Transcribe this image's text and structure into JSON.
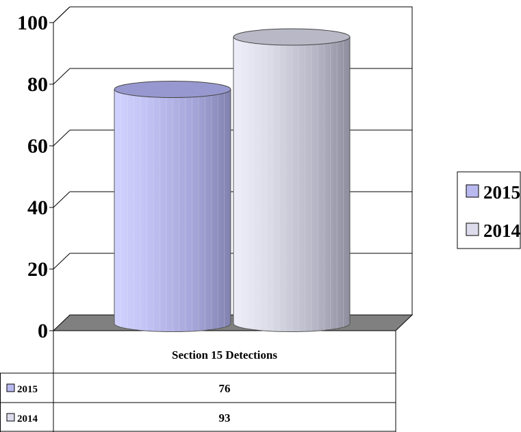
{
  "chart_data": {
    "type": "bar",
    "categories": [
      "Section 15 Detections"
    ],
    "series": [
      {
        "name": "2015",
        "values": [
          76
        ],
        "color": "#b9b9f0"
      },
      {
        "name": "2014",
        "values": [
          93
        ],
        "color": "#dcdcec"
      }
    ],
    "ylim": [
      0,
      100
    ],
    "yticks": [
      0,
      20,
      40,
      60,
      80,
      100
    ],
    "grid": true,
    "legend": "right",
    "data_table": true,
    "floor_color": "#808080"
  }
}
